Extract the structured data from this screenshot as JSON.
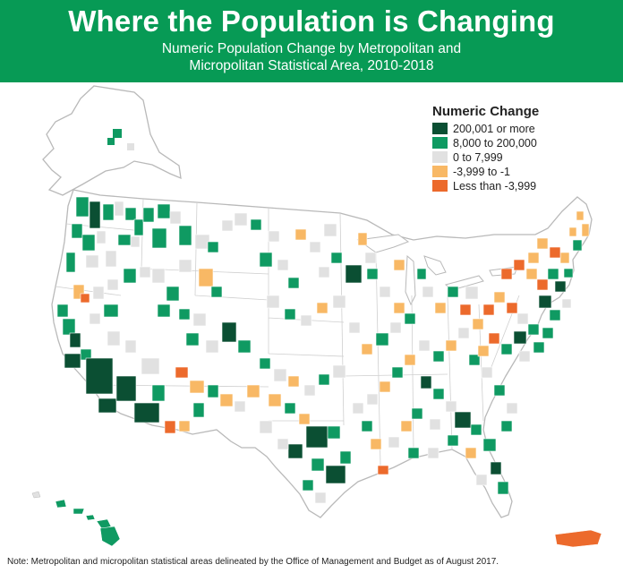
{
  "header": {
    "title": "Where the Population is Changing",
    "subtitle_line1": "Numeric Population Change by Metropolitan and",
    "subtitle_line2": "Micropolitan Statistical Area, 2010-2018"
  },
  "legend": {
    "title": "Numeric Change",
    "items": [
      {
        "label": "200,001 or more",
        "color": "#0b4f33"
      },
      {
        "label": "8,000 to 200,000",
        "color": "#0f9a62"
      },
      {
        "label": "0 to 7,999",
        "color": "#e1e1e1"
      },
      {
        "label": "-3,999 to -1",
        "color": "#f8b865"
      },
      {
        "label": "Less than -3,999",
        "color": "#ec6a2c"
      }
    ]
  },
  "map": {
    "base_fill": "#ffffff",
    "boundary_color": "#b9b9b9"
  },
  "note": "Note: Metropolitan and micropolitan statistical areas delineated by the Office of Management and Budget as of August 2017."
}
